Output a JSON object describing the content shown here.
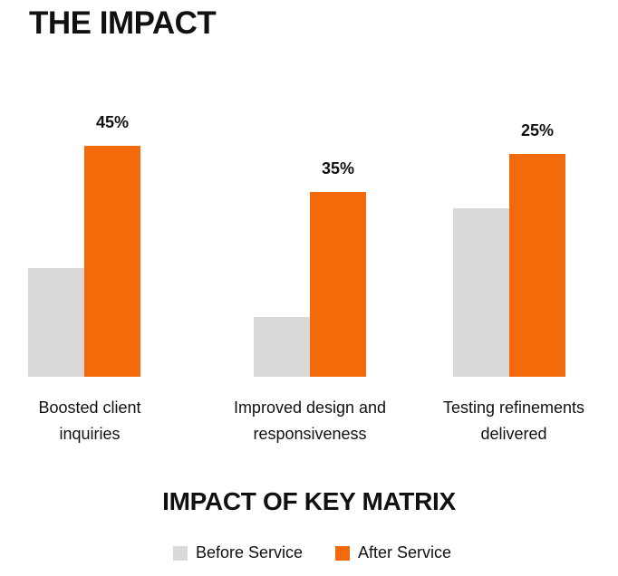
{
  "title": "THE IMPACT",
  "colors": {
    "before": "#d9d9d9",
    "after": "#f26a0a"
  },
  "chart_data": {
    "type": "bar",
    "title": "IMPACT OF KEY MATRIX",
    "categories": [
      [
        "Boosted client",
        "inquiries"
      ],
      [
        "Improved design and",
        "responsiveness"
      ],
      [
        "Testing refinements",
        "delivered"
      ]
    ],
    "series": [
      {
        "name": "Before Service",
        "bar_level_percent": [
          40,
          22,
          62
        ]
      },
      {
        "name": "After Service",
        "bar_level_percent": [
          85,
          68,
          82
        ],
        "data_labels": [
          "45%",
          "35%",
          "25%"
        ]
      }
    ],
    "legend": "bottom-center",
    "grid": false
  }
}
